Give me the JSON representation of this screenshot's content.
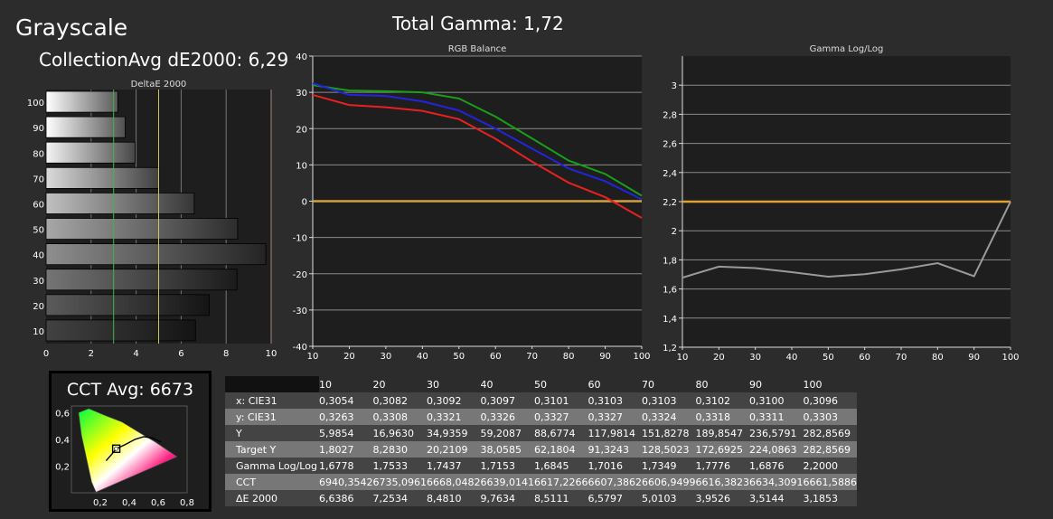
{
  "header": {
    "title": "Grayscale",
    "avg_label": "CollectionAvg dE2000: 6,29",
    "gamma_label": "Total Gamma: 1,72"
  },
  "cct": {
    "title": "CCT Avg: 6673",
    "x_ticks": [
      "0,2",
      "0,4",
      "0,6",
      "0,8"
    ],
    "y_ticks": [
      "0,6",
      "0,4",
      "0,2"
    ]
  },
  "chart_data": [
    {
      "type": "bar",
      "title": "DeltaE 2000",
      "orientation": "horizontal",
      "categories": [
        "100",
        "90",
        "80",
        "70",
        "60",
        "50",
        "40",
        "30",
        "20",
        "10"
      ],
      "values": [
        3.1853,
        3.5144,
        3.9526,
        5.0103,
        6.5797,
        8.5111,
        9.7634,
        8.481,
        7.2534,
        6.6386
      ],
      "xlim": [
        0,
        10
      ],
      "x_ticks": [
        "0",
        "2",
        "4",
        "6",
        "8",
        "10"
      ],
      "thresholds": [
        {
          "value": 3,
          "color": "#3dbb3d"
        },
        {
          "value": 5,
          "color": "#c8c85a"
        }
      ],
      "grid": true
    },
    {
      "type": "line",
      "title": "RGB Balance",
      "x": [
        10,
        20,
        30,
        40,
        50,
        60,
        70,
        80,
        90,
        100
      ],
      "x_ticks": [
        "10",
        "20",
        "30",
        "40",
        "50",
        "60",
        "70",
        "80",
        "90",
        "100"
      ],
      "y_ticks": [
        "40",
        "30",
        "20",
        "10",
        "0",
        "-10",
        "-20",
        "-30",
        "-40"
      ],
      "ylim": [
        -40,
        40
      ],
      "xlim": [
        10,
        100
      ],
      "series": [
        {
          "color": "#18a018",
          "values": [
            32,
            30.5,
            30.3,
            30,
            28.3,
            23.3,
            17.3,
            11.2,
            7.5,
            1.5
          ]
        },
        {
          "color": "#2323e0",
          "values": [
            32.5,
            29.3,
            29,
            27.5,
            25,
            20,
            14.5,
            9,
            5.5,
            0.5
          ]
        },
        {
          "color": "#e82020",
          "values": [
            29.3,
            26.5,
            25.9,
            24.9,
            22.6,
            17.2,
            10.9,
            5.1,
            1.1,
            -4.6
          ]
        }
      ],
      "reference": {
        "value": 0,
        "color": "#d0a040"
      },
      "grid": true
    },
    {
      "type": "line",
      "title": "Gamma Log/Log",
      "x": [
        10,
        20,
        30,
        40,
        50,
        60,
        70,
        80,
        90,
        100
      ],
      "x_ticks": [
        "10",
        "20",
        "30",
        "40",
        "50",
        "60",
        "70",
        "80",
        "90",
        "100"
      ],
      "y_ticks": [
        "3",
        "2,8",
        "2,6",
        "2,4",
        "2,2",
        "2",
        "1,8",
        "1,6",
        "1,4",
        "1,2"
      ],
      "ylim": [
        1.2,
        3.2
      ],
      "xlim": [
        10,
        100
      ],
      "series": [
        {
          "color": "#9a9a9a",
          "values": [
            1.6778,
            1.7533,
            1.7437,
            1.7153,
            1.6845,
            1.7016,
            1.7349,
            1.7776,
            1.6876,
            2.2
          ]
        }
      ],
      "reference": {
        "value": 2.2,
        "color": "#e0a030"
      },
      "grid": true
    },
    {
      "type": "table",
      "columns": [
        "",
        "10",
        "20",
        "30",
        "40",
        "50",
        "60",
        "70",
        "80",
        "90",
        "100"
      ],
      "rows": [
        [
          "x: CIE31",
          "0,3054",
          "0,3082",
          "0,3092",
          "0,3097",
          "0,3101",
          "0,3103",
          "0,3103",
          "0,3102",
          "0,3100",
          "0,3096"
        ],
        [
          "y: CIE31",
          "0,3263",
          "0,3308",
          "0,3321",
          "0,3326",
          "0,3327",
          "0,3327",
          "0,3324",
          "0,3318",
          "0,3311",
          "0,3303"
        ],
        [
          "Y",
          "5,9854",
          "16,9630",
          "34,9359",
          "59,2087",
          "88,6774",
          "117,9814",
          "151,8278",
          "189,8547",
          "236,5791",
          "282,8569"
        ],
        [
          "Target Y",
          "1,8027",
          "8,2830",
          "20,2109",
          "38,0585",
          "62,1804",
          "91,3243",
          "128,5023",
          "172,6925",
          "224,0863",
          "282,8569"
        ],
        [
          "Gamma Log/Log",
          "1,6778",
          "1,7533",
          "1,7437",
          "1,7153",
          "1,6845",
          "1,7016",
          "1,7349",
          "1,7776",
          "1,6876",
          "2,2000"
        ],
        [
          "CCT",
          "6940,3542",
          "6735,0961",
          "6668,0482",
          "6639,0141",
          "6617,2266",
          "6607,3862",
          "6606,9499",
          "6616,3823",
          "6634,3091",
          "6661,5886"
        ],
        [
          "ΔE 2000",
          "6,6386",
          "7,2534",
          "8,4810",
          "9,7634",
          "8,5111",
          "6,5797",
          "5,0103",
          "3,9526",
          "3,5144",
          "3,1853"
        ]
      ]
    }
  ]
}
